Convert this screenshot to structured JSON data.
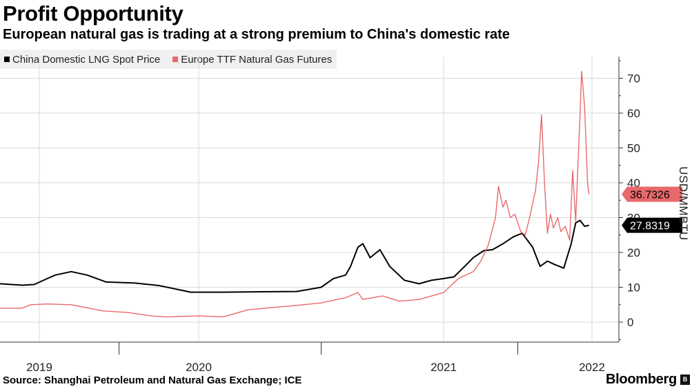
{
  "header": {
    "title": "Profit Opportunity",
    "subtitle": "European natural gas is trading at a strong premium to China's domestic rate"
  },
  "footer": {
    "source": "Source: Shanghai Petroleum and Natural Gas Exchange; ICE",
    "brand": "Bloomberg",
    "badge": "B"
  },
  "colors": {
    "china": "#000000",
    "europe": "#e8696b",
    "grid": "#d9d9d9",
    "axis": "#333333"
  },
  "chart_data": {
    "type": "line",
    "title": "Profit Opportunity",
    "subtitle": "European natural gas is trading at a strong premium to China's domestic rate",
    "xlabel": "",
    "ylabel": "USD/MMBTU",
    "xlim": [
      2018.77,
      2022.18
    ],
    "ylim": [
      -5,
      78
    ],
    "y_ticks": [
      0,
      10,
      20,
      30,
      40,
      50,
      60,
      70
    ],
    "x_ticks": [
      {
        "label": "2019",
        "value": 2019.0
      },
      {
        "label": "2020",
        "value": 2020.0
      },
      {
        "label": "2021",
        "value": 2021.0
      },
      {
        "label": "2022",
        "value": 2022.0
      }
    ],
    "grid": true,
    "legend_position": "top-left",
    "series": [
      {
        "name": "China Domestic LNG Spot Price",
        "color": "#000000",
        "last_value": "27.8319",
        "points": [
          [
            2018.77,
            11.0
          ],
          [
            2018.9,
            10.6
          ],
          [
            2018.97,
            10.8
          ],
          [
            2019.05,
            12.5
          ],
          [
            2019.1,
            13.5
          ],
          [
            2019.2,
            14.5
          ],
          [
            2019.3,
            13.5
          ],
          [
            2019.42,
            11.5
          ],
          [
            2019.6,
            11.2
          ],
          [
            2019.75,
            10.5
          ],
          [
            2019.95,
            8.6
          ],
          [
            2020.1,
            8.6
          ],
          [
            2020.4,
            8.8
          ],
          [
            2020.5,
            10.0
          ],
          [
            2020.55,
            12.5
          ],
          [
            2020.6,
            13.5
          ],
          [
            2020.62,
            16.0
          ],
          [
            2020.65,
            21.5
          ],
          [
            2020.67,
            22.5
          ],
          [
            2020.7,
            18.5
          ],
          [
            2020.74,
            20.8
          ],
          [
            2020.78,
            16.0
          ],
          [
            2020.84,
            12.0
          ],
          [
            2020.9,
            11.0
          ],
          [
            2020.95,
            12.0
          ],
          [
            2021.0,
            12.5
          ],
          [
            2021.07,
            13.0
          ],
          [
            2021.13,
            15.5
          ],
          [
            2021.2,
            18.5
          ],
          [
            2021.27,
            20.5
          ],
          [
            2021.33,
            20.8
          ],
          [
            2021.4,
            22.5
          ],
          [
            2021.47,
            24.5
          ],
          [
            2021.53,
            25.5
          ],
          [
            2021.6,
            21.5
          ],
          [
            2021.65,
            16.0
          ],
          [
            2021.7,
            17.5
          ],
          [
            2021.75,
            16.5
          ],
          [
            2021.81,
            15.5
          ],
          [
            2021.86,
            22.5
          ],
          [
            2021.89,
            28.5
          ],
          [
            2021.92,
            29.2
          ],
          [
            2021.95,
            27.5
          ],
          [
            2021.98,
            27.8
          ]
        ]
      },
      {
        "name": "Europe TTF Natural Gas Futures",
        "color": "#e8696b",
        "last_value": "36.7326",
        "points": [
          [
            2018.77,
            4.0
          ],
          [
            2018.9,
            4.0
          ],
          [
            2018.95,
            5.0
          ],
          [
            2019.05,
            5.2
          ],
          [
            2019.2,
            5.0
          ],
          [
            2019.4,
            3.2
          ],
          [
            2019.55,
            2.8
          ],
          [
            2019.7,
            1.8
          ],
          [
            2019.8,
            1.5
          ],
          [
            2020.0,
            1.8
          ],
          [
            2020.1,
            1.5
          ],
          [
            2020.2,
            3.5
          ],
          [
            2020.3,
            4.2
          ],
          [
            2020.4,
            4.8
          ],
          [
            2020.5,
            5.5
          ],
          [
            2020.6,
            7.0
          ],
          [
            2020.65,
            8.5
          ],
          [
            2020.67,
            6.5
          ],
          [
            2020.75,
            7.5
          ],
          [
            2020.82,
            6.0
          ],
          [
            2020.9,
            6.5
          ],
          [
            2021.0,
            8.5
          ],
          [
            2021.05,
            10.5
          ],
          [
            2021.1,
            12.5
          ],
          [
            2021.2,
            14.5
          ],
          [
            2021.25,
            17.5
          ],
          [
            2021.3,
            22.0
          ],
          [
            2021.35,
            30.0
          ],
          [
            2021.37,
            39.0
          ],
          [
            2021.4,
            33.0
          ],
          [
            2021.42,
            35.0
          ],
          [
            2021.45,
            30.0
          ],
          [
            2021.48,
            31.0
          ],
          [
            2021.52,
            26.0
          ],
          [
            2021.55,
            25.0
          ],
          [
            2021.58,
            30.0
          ],
          [
            2021.62,
            38.0
          ],
          [
            2021.64,
            46.0
          ],
          [
            2021.66,
            59.5
          ],
          [
            2021.68,
            40.0
          ],
          [
            2021.7,
            25.5
          ],
          [
            2021.72,
            31.0
          ],
          [
            2021.74,
            27.0
          ],
          [
            2021.77,
            30.0
          ],
          [
            2021.79,
            26.0
          ],
          [
            2021.82,
            27.5
          ],
          [
            2021.85,
            23.5
          ],
          [
            2021.87,
            43.5
          ],
          [
            2021.89,
            29.0
          ],
          [
            2021.92,
            60.0
          ],
          [
            2021.93,
            72.0
          ],
          [
            2021.95,
            62.0
          ],
          [
            2021.97,
            40.0
          ],
          [
            2021.98,
            36.7
          ]
        ]
      }
    ]
  }
}
